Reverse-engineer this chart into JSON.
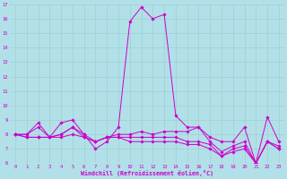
{
  "xlabel": "Windchill (Refroidissement éolien,°C)",
  "bg_color": "#b2e0e8",
  "grid_color": "#9ecfcf",
  "line_color": "#cc00cc",
  "xlim": [
    -0.5,
    23.5
  ],
  "ylim": [
    6,
    17
  ],
  "xticks": [
    0,
    1,
    2,
    3,
    4,
    5,
    6,
    7,
    8,
    9,
    10,
    11,
    12,
    13,
    14,
    15,
    16,
    17,
    18,
    19,
    20,
    21,
    22,
    23
  ],
  "yticks": [
    6,
    7,
    8,
    9,
    10,
    11,
    12,
    13,
    14,
    15,
    16,
    17
  ],
  "series": [
    [
      8.0,
      8.0,
      8.8,
      7.8,
      8.8,
      9.0,
      8.0,
      7.0,
      7.5,
      8.5,
      15.8,
      16.8,
      16.0,
      16.3,
      9.3,
      8.5,
      8.5,
      7.8,
      7.5,
      7.5,
      8.5,
      6.0,
      9.2,
      7.5
    ],
    [
      8.0,
      8.0,
      8.5,
      7.8,
      8.0,
      8.5,
      8.0,
      7.5,
      7.8,
      8.0,
      8.0,
      8.2,
      8.0,
      8.2,
      8.2,
      8.2,
      8.5,
      7.5,
      6.8,
      7.2,
      7.5,
      6.0,
      7.5,
      7.2
    ],
    [
      8.0,
      7.8,
      7.8,
      7.8,
      8.0,
      8.5,
      7.8,
      7.5,
      7.8,
      7.8,
      7.8,
      7.8,
      7.8,
      7.8,
      7.8,
      7.5,
      7.5,
      7.3,
      6.5,
      7.0,
      7.2,
      6.0,
      7.5,
      7.0
    ],
    [
      8.0,
      7.8,
      7.8,
      7.8,
      7.8,
      8.0,
      7.8,
      7.5,
      7.8,
      7.8,
      7.5,
      7.5,
      7.5,
      7.5,
      7.5,
      7.3,
      7.3,
      7.0,
      6.5,
      6.8,
      7.0,
      6.0,
      7.5,
      7.0
    ]
  ]
}
